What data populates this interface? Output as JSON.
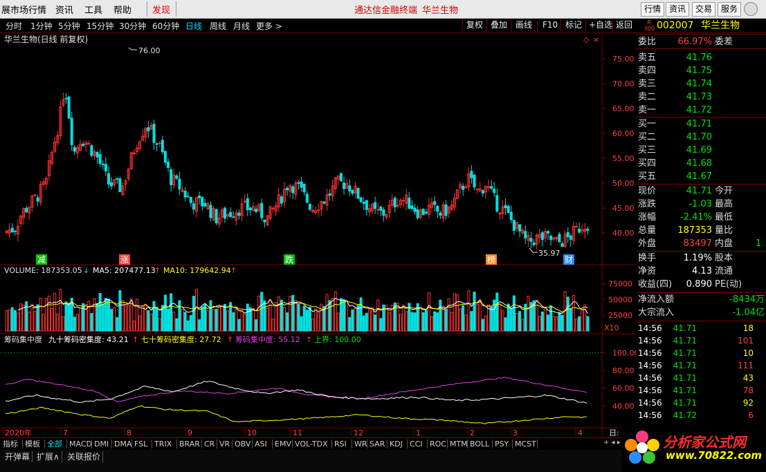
{
  "menu": {
    "items": [
      "展市场行情",
      "资讯",
      "工具",
      "帮助"
    ],
    "discover": "发现",
    "center_title": "通达信金融终端",
    "center_stock": "华兰生物",
    "right_buttons": [
      "行情",
      "资讯",
      "交易",
      "服务"
    ]
  },
  "periods": [
    "分时",
    "1分钟",
    "5分钟",
    "15分钟",
    "30分钟",
    "60分钟",
    "日线",
    "周线",
    "月线",
    "更多 >"
  ],
  "active_period": "日线",
  "chart_tools": [
    "复权",
    "叠加",
    "画线",
    "F10",
    "标记",
    "+自选",
    "返回"
  ],
  "chart": {
    "title": "华兰生物(日线 前复权)",
    "high_label": "76.00",
    "low_label": "35.97",
    "price_ticks": [
      "75.00",
      "70.00",
      "65.00",
      "60.00",
      "55.00",
      "50.00",
      "45.00",
      "40.00"
    ],
    "events": [
      "减",
      "涨",
      "跌",
      "榜",
      "财"
    ],
    "volume_line": {
      "vol_label": "VOLUME: 187353.05",
      "ma5_label": "MA5: 207477.13",
      "ma10_label": "MA10: 179642.94"
    },
    "volume_ticks": [
      "75000",
      "50000",
      "25000"
    ],
    "volume_unit": "X10",
    "chip_line": {
      "name": "筹码集中度",
      "c90": "九十筹码密集度: 43.21",
      "c70": "七十筹码密集度: 27.72",
      "cc": "筹码集中度: 55.12",
      "upper": "上界: 100.00"
    },
    "chip_ticks": [
      "100.00",
      "80.00",
      "60.00",
      "40.00"
    ],
    "date_labels": [
      "2020年",
      "7",
      "8",
      "9",
      "10",
      "11",
      "12",
      "1",
      "2",
      "3",
      "4"
    ],
    "corner_label": "日:",
    "colors": {
      "up": "#ff3232",
      "down": "#00e0e0",
      "ma5": "#ffffff",
      "ma10": "#ffff00",
      "cc": "#e040e0",
      "c90": "#ffffff",
      "c70": "#ffff00"
    }
  },
  "quote": {
    "marker": "R\n300",
    "code": "002007",
    "name": "华兰生物",
    "weibi_label": "委比",
    "weibi": "66.97%",
    "weicha_label": "委差",
    "asks": [
      {
        "label": "卖五",
        "price": "41.76"
      },
      {
        "label": "卖四",
        "price": "41.75"
      },
      {
        "label": "卖三",
        "price": "41.74"
      },
      {
        "label": "卖二",
        "price": "41.73"
      },
      {
        "label": "卖一",
        "price": "41.72"
      }
    ],
    "bids": [
      {
        "label": "买一",
        "price": "41.71"
      },
      {
        "label": "买二",
        "price": "41.70"
      },
      {
        "label": "买三",
        "price": "41.69"
      },
      {
        "label": "买四",
        "price": "41.68"
      },
      {
        "label": "买五",
        "price": "41.67"
      }
    ],
    "stats": [
      {
        "label": "现价",
        "value": "41.71",
        "label2": "今开",
        "cls": "green"
      },
      {
        "label": "涨跌",
        "value": "-1.03",
        "label2": "最高",
        "cls": "green"
      },
      {
        "label": "涨幅",
        "value": "-2.41%",
        "label2": "最低",
        "cls": "green"
      },
      {
        "label": "总量",
        "value": "187353",
        "label2": "量比",
        "cls": "yellow"
      },
      {
        "label": "外盘",
        "value": "83497",
        "label2": "内盘",
        "cls": "red"
      },
      {
        "label": "换手",
        "value": "1.19%",
        "label2": "股本",
        "cls": "white"
      },
      {
        "label": "净资",
        "value": "4.13",
        "label2": "流通",
        "cls": "white"
      },
      {
        "label": "收益(四)",
        "value": "0.890",
        "label2": "PE(动)",
        "cls": "white"
      }
    ],
    "neipan_tail": "1",
    "flows": [
      {
        "label": "净流入额",
        "value": "-8434万"
      },
      {
        "label": "大宗流入",
        "value": "-1.04亿"
      }
    ],
    "ticks": [
      {
        "time": "14:56",
        "price": "41.71",
        "vol": "18"
      },
      {
        "time": "14:56",
        "price": "41.71",
        "vol": "101"
      },
      {
        "time": "14:56",
        "price": "41.71",
        "vol": "10"
      },
      {
        "time": "14:56",
        "price": "41.71",
        "vol": "111"
      },
      {
        "time": "14:56",
        "price": "41.71",
        "vol": "43"
      },
      {
        "time": "14:56",
        "price": "41.71",
        "vol": "78"
      },
      {
        "time": "14:56",
        "price": "41.71",
        "vol": "92"
      },
      {
        "time": "14:56",
        "price": "41.72",
        "vol": "6"
      }
    ]
  },
  "indicator_tabs": [
    "指标",
    "模板",
    "全部",
    "MACD",
    "DMI",
    "DMA",
    "FSL",
    "TRIX",
    "BRAR",
    "CR",
    "VR",
    "OBV",
    "ASI",
    "EMV",
    "VOL-TDX",
    "RSI",
    "WR",
    "SAR",
    "KDJ",
    "CCI",
    "ROC",
    "MTM",
    "BOLL",
    "PSY",
    "MCST"
  ],
  "active_tab": "全部",
  "bottom_tabs": [
    "开弹幕",
    "扩展∧",
    "关联报价"
  ],
  "logo": {
    "main": "分析家公式网",
    "url": "www.70822.com"
  }
}
